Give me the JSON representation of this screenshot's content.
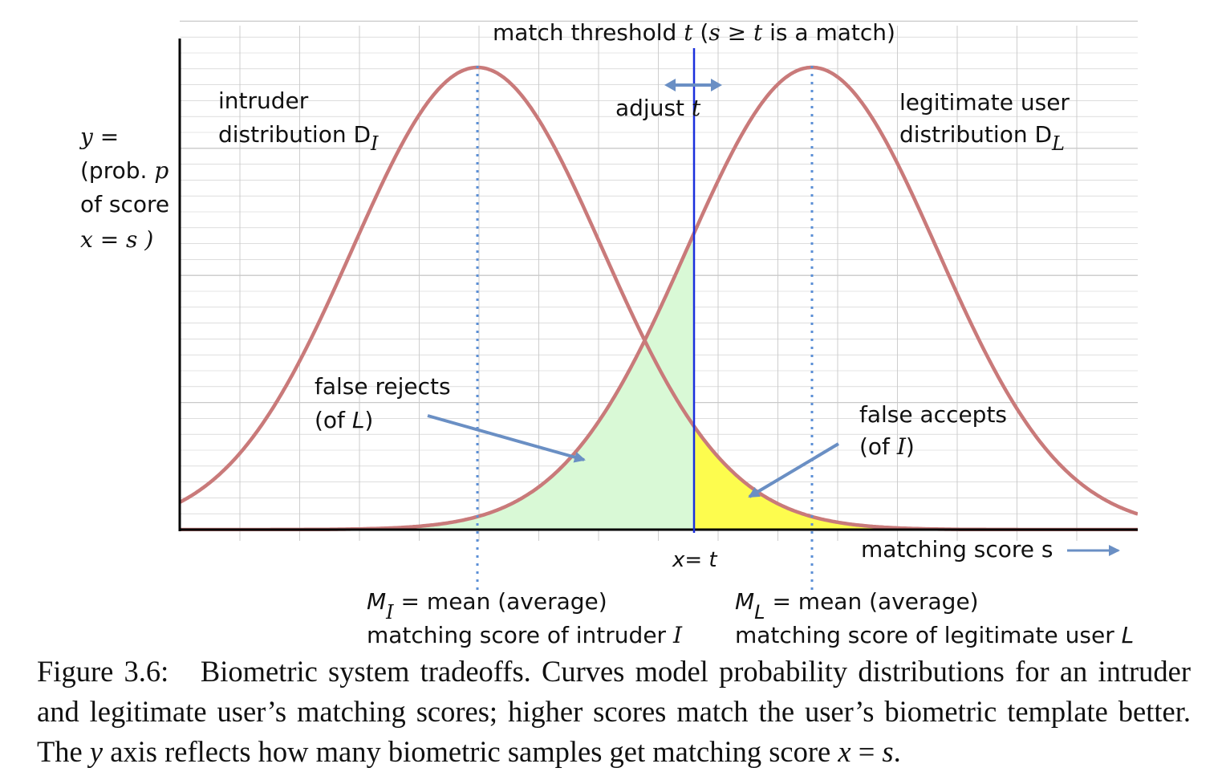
{
  "figure": {
    "threshold_label": {
      "a": "match threshold ",
      "t": "t",
      "b": " (",
      "s": "s",
      "ge": " ≥ ",
      "t2": "t",
      "c": " is a match)"
    },
    "adjust_label": {
      "text": "adjust ",
      "t": "t"
    },
    "y_axis_label": {
      "line1": "y =",
      "line2a": "(prob. ",
      "line2b": "p",
      "line3": "of score",
      "line4": "x = s )"
    },
    "intruder_label": {
      "line1": "intruder",
      "line2": "distribution D",
      "sub": "I"
    },
    "legit_label": {
      "line1": "legitimate user",
      "line2": "distribution D",
      "sub": "L"
    },
    "false_rejects_label": {
      "line1": "false rejects",
      "line2a": "(of ",
      "line2b": "L",
      "line2c": ")"
    },
    "false_accepts_label": {
      "line1": "false accepts",
      "line2a": " (of ",
      "line2b": "I",
      "line2c": ")"
    },
    "x_eq_t_label": "x= t",
    "x_axis_label": "matching score s",
    "mean_intruder_label": {
      "m": "M",
      "sub": "I",
      "line1": " = mean (average)",
      "line2a": "matching score of intruder ",
      "line2b": "I"
    },
    "mean_legit_label": {
      "m": "M",
      "sub": "L",
      "line1": " = mean (average)",
      "line2a": "matching score of legitimate user ",
      "line2b": "L"
    },
    "colors": {
      "curve": "#c97a7a",
      "threshold_line": "#1a2fdc",
      "arrow": "#6a8fc4",
      "false_reject_fill": "#d9f9d6",
      "false_accept_fill": "#fdfc4e",
      "grid": "#c9c9c9",
      "mean_line": "#5b8fd6"
    }
  },
  "caption": {
    "prefix": "Figure 3.6:",
    "text1": "Biometric system tradeoffs. Curves model probability distributions for an intruder and legitimate user’s matching scores; higher scores match the user’s biometric template better. The ",
    "y": "y",
    "text2": " axis reflects how many biometric samples get matching score ",
    "x": "x",
    "eq": " = ",
    "s": "s",
    "end": "."
  }
}
